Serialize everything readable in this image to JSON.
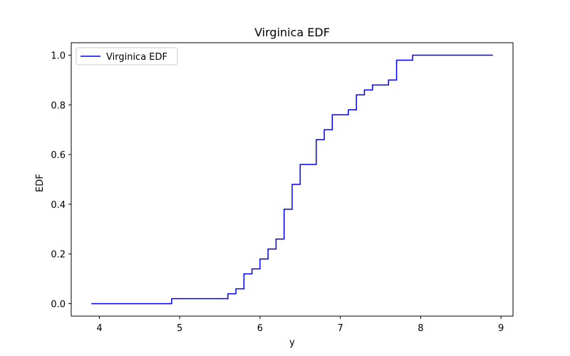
{
  "chart_data": {
    "type": "line",
    "step": "post",
    "title": "Virginica EDF",
    "xlabel": "y",
    "ylabel": "EDF",
    "xlim": [
      3.65,
      9.15
    ],
    "ylim": [
      -0.05,
      1.05
    ],
    "xticks": [
      4,
      5,
      6,
      7,
      8,
      9
    ],
    "yticks": [
      0.0,
      0.2,
      0.4,
      0.6,
      0.8,
      1.0
    ],
    "xtick_labels": [
      "4",
      "5",
      "6",
      "7",
      "8",
      "9"
    ],
    "ytick_labels": [
      "0.0",
      "0.2",
      "0.4",
      "0.6",
      "0.8",
      "1.0"
    ],
    "grid": false,
    "legend_position": "top-left",
    "series": [
      {
        "name": "Virginica EDF",
        "color": "#0000ff",
        "x": [
          3.9,
          4.9,
          5.6,
          5.7,
          5.8,
          5.9,
          6.0,
          6.1,
          6.2,
          6.3,
          6.4,
          6.5,
          6.7,
          6.8,
          6.9,
          7.1,
          7.2,
          7.3,
          7.4,
          7.6,
          7.7,
          7.9,
          8.9
        ],
        "y": [
          0.0,
          0.02,
          0.04,
          0.06,
          0.12,
          0.14,
          0.18,
          0.22,
          0.26,
          0.38,
          0.48,
          0.56,
          0.66,
          0.7,
          0.76,
          0.78,
          0.84,
          0.86,
          0.88,
          0.9,
          0.98,
          1.0,
          1.0
        ]
      }
    ]
  }
}
